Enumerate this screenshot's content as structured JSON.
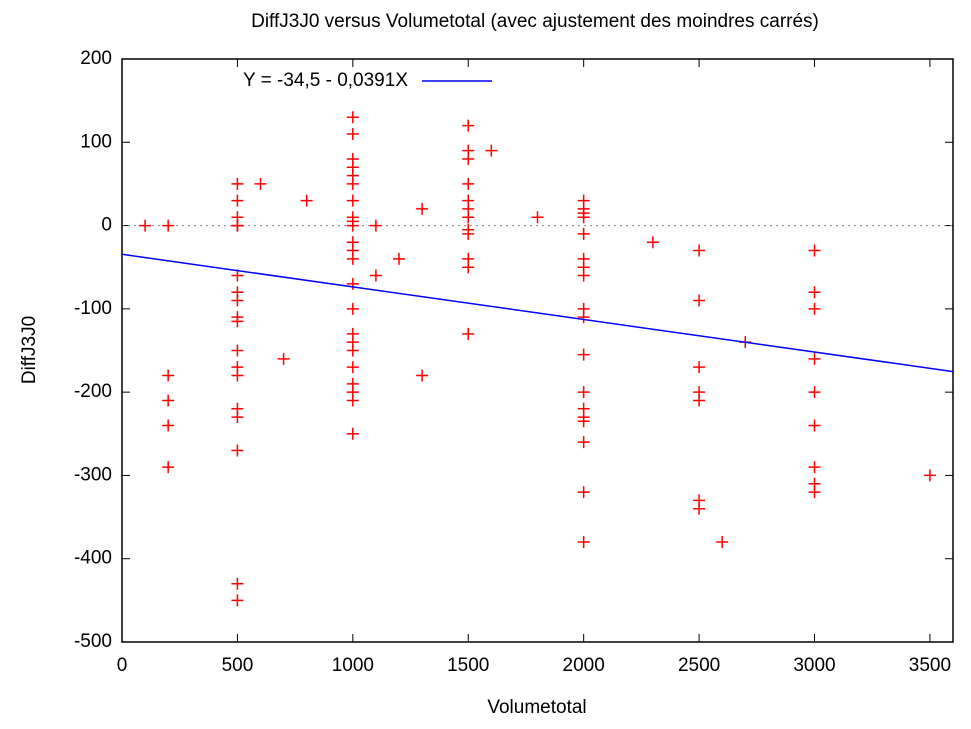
{
  "chart_data": {
    "type": "scatter",
    "title": "DiffJ3J0 versus Volumetotal (avec ajustement des moindres carrés)",
    "xlabel": "Volumetotal",
    "ylabel": "DiffJ3J0",
    "xlim": [
      0,
      3600
    ],
    "ylim": [
      -500,
      200
    ],
    "xticks": [
      0,
      500,
      1000,
      1500,
      2000,
      2500,
      3000,
      3500
    ],
    "yticks": [
      -500,
      -400,
      -300,
      -200,
      -100,
      0,
      100,
      200
    ],
    "zero_line": true,
    "legend": "top-left",
    "series": [
      {
        "color": "#ff0000",
        "marker": "+",
        "x": [
          100,
          200,
          200,
          200,
          200,
          200,
          500,
          500,
          500,
          500,
          500,
          500,
          500,
          500,
          500,
          500,
          500,
          500,
          500,
          500,
          500,
          500,
          500,
          500,
          600,
          700,
          800,
          1000,
          1000,
          1000,
          1000,
          1000,
          1000,
          1000,
          1000,
          1000,
          1000,
          1000,
          1000,
          1000,
          1000,
          1000,
          1000,
          1000,
          1000,
          1000,
          1000,
          1000,
          1000,
          1000,
          1100,
          1100,
          1200,
          1300,
          1300,
          1500,
          1500,
          1500,
          1500,
          1500,
          1500,
          1500,
          1500,
          1500,
          1500,
          1500,
          1500,
          1600,
          1800,
          2000,
          2000,
          2000,
          2000,
          2000,
          2000,
          2000,
          2000,
          2000,
          2000,
          2000,
          2000,
          2000,
          2000,
          2000,
          2000,
          2000,
          2000,
          2300,
          2500,
          2500,
          2500,
          2500,
          2500,
          2500,
          2500,
          2600,
          2700,
          3000,
          3000,
          3000,
          3000,
          3000,
          3000,
          3000,
          3000,
          3000,
          3500
        ],
        "values": [
          0,
          0,
          -180,
          -210,
          -240,
          -290,
          50,
          30,
          10,
          0,
          -60,
          -80,
          -90,
          -110,
          -115,
          -150,
          -170,
          -180,
          -220,
          -230,
          -270,
          -430,
          -450,
          0,
          50,
          -160,
          30,
          130,
          110,
          80,
          70,
          60,
          50,
          30,
          10,
          5,
          0,
          -20,
          -30,
          -40,
          -70,
          -100,
          -130,
          -140,
          -150,
          -170,
          -190,
          -200,
          -210,
          -250,
          0,
          -60,
          -40,
          20,
          -180,
          120,
          90,
          80,
          50,
          30,
          20,
          10,
          -5,
          -10,
          -40,
          -50,
          -130,
          90,
          10,
          30,
          20,
          15,
          10,
          -10,
          -40,
          -50,
          -60,
          -100,
          -110,
          -155,
          -200,
          -220,
          -230,
          -235,
          -260,
          -320,
          -380,
          -20,
          -30,
          -90,
          -170,
          -200,
          -210,
          -330,
          -340,
          -380,
          -140,
          -30,
          -80,
          -100,
          -160,
          -200,
          -240,
          -290,
          -310,
          -320,
          -300
        ]
      },
      {
        "name": "Y = -34,5 - 0,0391X",
        "color": "#0000ff",
        "marker": "line",
        "x": [
          0,
          3600
        ],
        "values": [
          -34.5,
          -175.3
        ]
      }
    ]
  }
}
